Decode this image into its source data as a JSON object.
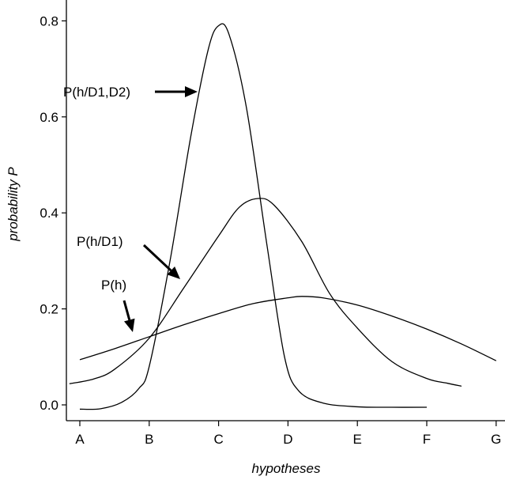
{
  "chart_data": {
    "type": "line",
    "xlabel": "hypotheses",
    "ylabel": "probability P",
    "categories": [
      "A",
      "B",
      "C",
      "D",
      "E",
      "F",
      "G"
    ],
    "ylim": [
      0,
      0.8
    ],
    "yticks": [
      "0.0",
      "0.2",
      "0.4",
      "0.6",
      "0.8"
    ],
    "grid": false,
    "series": [
      {
        "name": "P(h)",
        "points": [
          [
            0,
            0.094
          ],
          [
            0.5,
            0.117
          ],
          [
            1,
            0.142
          ],
          [
            1.5,
            0.167
          ],
          [
            2,
            0.19
          ],
          [
            2.5,
            0.211
          ],
          [
            3,
            0.223
          ],
          [
            3.2,
            0.226
          ],
          [
            3.5,
            0.223
          ],
          [
            4,
            0.208
          ],
          [
            4.5,
            0.185
          ],
          [
            5,
            0.158
          ],
          [
            5.5,
            0.127
          ],
          [
            6,
            0.092
          ]
        ]
      },
      {
        "name": "P(h/D1)",
        "points": [
          [
            -0.15,
            0.044
          ],
          [
            0.2,
            0.054
          ],
          [
            0.5,
            0.074
          ],
          [
            1,
            0.139
          ],
          [
            1.5,
            0.244
          ],
          [
            2,
            0.352
          ],
          [
            2.3,
            0.412
          ],
          [
            2.57,
            0.43
          ],
          [
            2.8,
            0.416
          ],
          [
            3.2,
            0.34
          ],
          [
            3.6,
            0.232
          ],
          [
            4,
            0.16
          ],
          [
            4.5,
            0.09
          ],
          [
            5,
            0.055
          ],
          [
            5.3,
            0.045
          ],
          [
            5.5,
            0.039
          ]
        ]
      },
      {
        "name": "P(h/D1,D2)",
        "points": [
          [
            0,
            -0.009
          ],
          [
            0.3,
            -0.008
          ],
          [
            0.6,
            0.005
          ],
          [
            0.85,
            0.034
          ],
          [
            1,
            0.08
          ],
          [
            1.3,
            0.3
          ],
          [
            1.6,
            0.56
          ],
          [
            1.85,
            0.74
          ],
          [
            2,
            0.79
          ],
          [
            2.15,
            0.772
          ],
          [
            2.4,
            0.62
          ],
          [
            2.7,
            0.33
          ],
          [
            2.95,
            0.1
          ],
          [
            3.15,
            0.03
          ],
          [
            3.5,
            0.004
          ],
          [
            4,
            -0.004
          ],
          [
            4.5,
            -0.005
          ],
          [
            5,
            -0.005
          ]
        ]
      }
    ],
    "annotations": [
      {
        "text": "P(h/D1,D2)",
        "target_series": "P(h/D1,D2)"
      },
      {
        "text": "P(h/D1)",
        "target_series": "P(h/D1)"
      },
      {
        "text": "P(h)",
        "target_series": "P(h)"
      }
    ]
  }
}
